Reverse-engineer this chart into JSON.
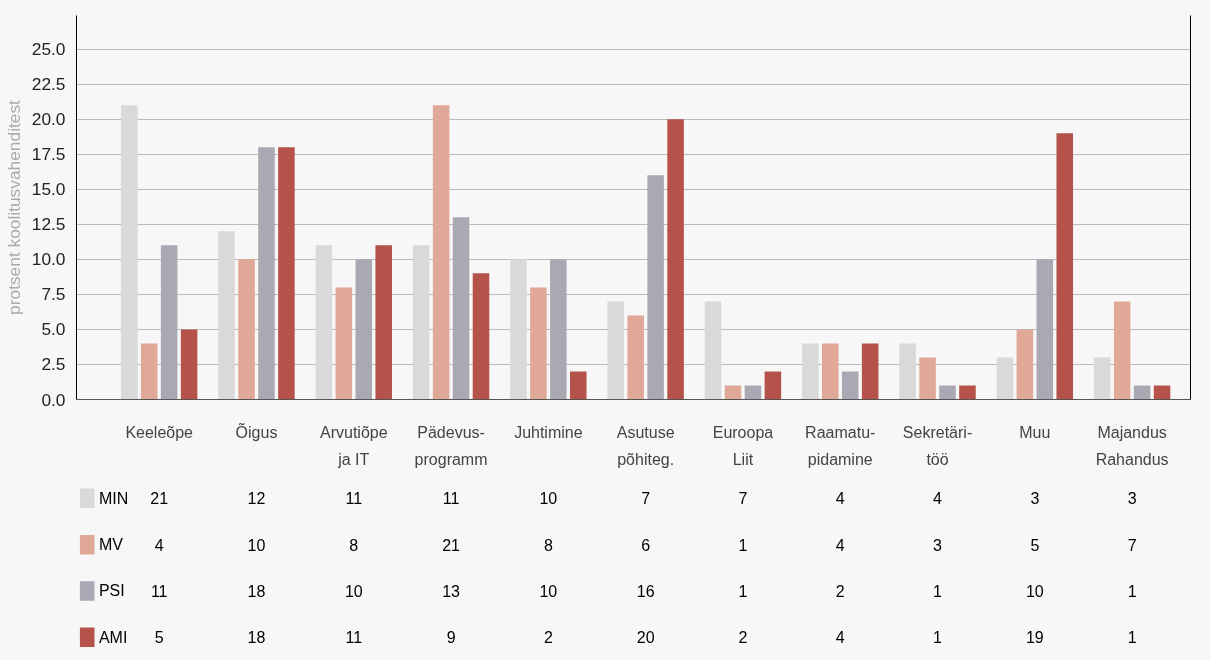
{
  "chart_data": {
    "type": "bar",
    "ylabel": "protsent koolitusvahenditest",
    "categories": [
      "Keeleõpe",
      "Õigus",
      "Arvutiõpe\nja IT",
      "Pädevus-\nprogramm",
      "Juhtimine",
      "Asutuse\npõhiteg.",
      "Euroopa\nLiit",
      "Raamatu-\npidamine",
      "Sekretäri-\ntöö",
      "Muu",
      "Majandus\nRahandus"
    ],
    "series": [
      {
        "name": "MIN",
        "color": "#d9d9d9",
        "values": [
          21,
          12,
          11,
          11,
          10,
          7,
          7,
          4,
          4,
          3,
          3
        ]
      },
      {
        "name": "MV",
        "color": "#e0a896",
        "values": [
          4,
          10,
          8,
          21,
          8,
          6,
          1,
          4,
          3,
          5,
          7
        ]
      },
      {
        "name": "PSI",
        "color": "#a9a9b3",
        "values": [
          11,
          18,
          10,
          13,
          10,
          16,
          1,
          2,
          1,
          10,
          1
        ]
      },
      {
        "name": "AMI",
        "color": "#b5524a",
        "values": [
          5,
          18,
          11,
          9,
          2,
          20,
          2,
          4,
          1,
          19,
          1
        ]
      }
    ],
    "ylim": [
      0,
      27.4
    ],
    "yticks": [
      {
        "value": 0,
        "label": "0.0"
      },
      {
        "value": 2.5,
        "label": "2.5"
      },
      {
        "value": 5,
        "label": "5.0"
      },
      {
        "value": 7.5,
        "label": "7.5"
      },
      {
        "value": 10,
        "label": "10.0"
      },
      {
        "value": 12.5,
        "label": "12.5"
      },
      {
        "value": 15,
        "label": "15.0"
      },
      {
        "value": 17.5,
        "label": "17.5"
      },
      {
        "value": 20,
        "label": "20.0"
      },
      {
        "value": 22.5,
        "label": "22.5"
      },
      {
        "value": 25,
        "label": "25.0"
      }
    ],
    "grid": "y",
    "legend": "bottom left",
    "data_labels": true
  }
}
